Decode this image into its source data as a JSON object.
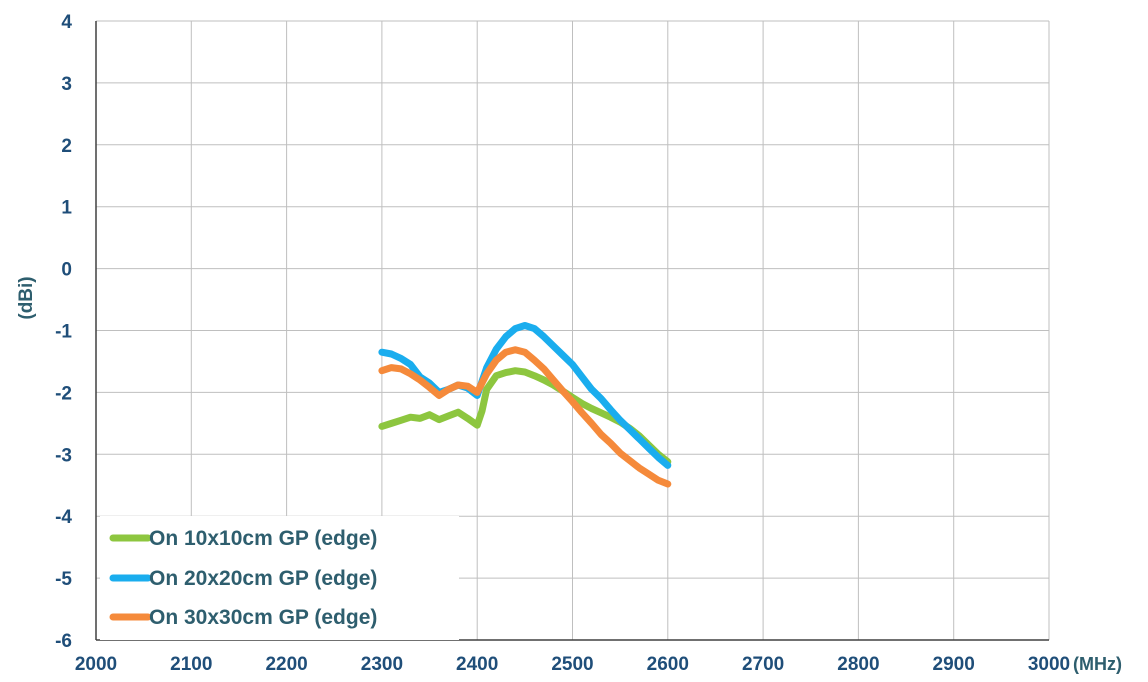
{
  "chart_data": {
    "type": "line",
    "title": "",
    "xlabel": "(MHz)",
    "ylabel": "(dBi)",
    "xlim": [
      2000,
      3000
    ],
    "ylim": [
      -6,
      4
    ],
    "xticks": [
      "2000",
      "2100",
      "2200",
      "2300",
      "2400",
      "2500",
      "2600",
      "2700",
      "2800",
      "2900",
      "3000"
    ],
    "yticks": [
      "4",
      "3",
      "2",
      "1",
      "0",
      "-1",
      "-2",
      "-3",
      "-4",
      "-5",
      "-6"
    ],
    "grid": true,
    "legend_position": "bottom-left",
    "series": [
      {
        "name": "On 10x10cm GP (edge)",
        "color": "#8DC63F",
        "x": [
          2300,
          2310,
          2320,
          2330,
          2340,
          2350,
          2360,
          2370,
          2380,
          2390,
          2400,
          2405,
          2410,
          2420,
          2430,
          2440,
          2450,
          2460,
          2470,
          2480,
          2490,
          2500,
          2510,
          2520,
          2530,
          2540,
          2550,
          2560,
          2570,
          2580,
          2590,
          2600
        ],
        "y": [
          -2.55,
          -2.5,
          -2.45,
          -2.4,
          -2.42,
          -2.36,
          -2.44,
          -2.38,
          -2.32,
          -2.42,
          -2.53,
          -2.3,
          -1.95,
          -1.73,
          -1.68,
          -1.65,
          -1.67,
          -1.73,
          -1.8,
          -1.88,
          -1.98,
          -2.08,
          -2.18,
          -2.26,
          -2.33,
          -2.4,
          -2.48,
          -2.58,
          -2.7,
          -2.85,
          -3.0,
          -3.12
        ]
      },
      {
        "name": "On 20x20cm GP (edge)",
        "color": "#1AADEE",
        "x": [
          2300,
          2310,
          2320,
          2330,
          2340,
          2350,
          2360,
          2370,
          2380,
          2390,
          2400,
          2410,
          2420,
          2430,
          2440,
          2450,
          2460,
          2470,
          2480,
          2490,
          2500,
          2510,
          2520,
          2530,
          2540,
          2550,
          2560,
          2570,
          2580,
          2590,
          2600
        ],
        "y": [
          -1.35,
          -1.38,
          -1.45,
          -1.55,
          -1.75,
          -1.85,
          -2.0,
          -1.95,
          -1.88,
          -1.93,
          -2.05,
          -1.6,
          -1.3,
          -1.1,
          -0.97,
          -0.92,
          -0.97,
          -1.1,
          -1.25,
          -1.4,
          -1.55,
          -1.75,
          -1.95,
          -2.1,
          -2.28,
          -2.45,
          -2.6,
          -2.75,
          -2.9,
          -3.05,
          -3.18
        ]
      },
      {
        "name": "On 30x30cm GP (edge)",
        "color": "#F58A3B",
        "x": [
          2300,
          2310,
          2320,
          2330,
          2340,
          2350,
          2360,
          2370,
          2380,
          2390,
          2400,
          2410,
          2420,
          2430,
          2440,
          2450,
          2460,
          2470,
          2480,
          2490,
          2500,
          2510,
          2520,
          2530,
          2540,
          2550,
          2560,
          2570,
          2580,
          2590,
          2600
        ],
        "y": [
          -1.65,
          -1.6,
          -1.62,
          -1.7,
          -1.8,
          -1.92,
          -2.05,
          -1.95,
          -1.88,
          -1.9,
          -2.0,
          -1.7,
          -1.48,
          -1.35,
          -1.31,
          -1.35,
          -1.48,
          -1.62,
          -1.8,
          -1.98,
          -2.15,
          -2.33,
          -2.5,
          -2.68,
          -2.82,
          -2.98,
          -3.1,
          -3.22,
          -3.32,
          -3.42,
          -3.48
        ]
      }
    ]
  }
}
